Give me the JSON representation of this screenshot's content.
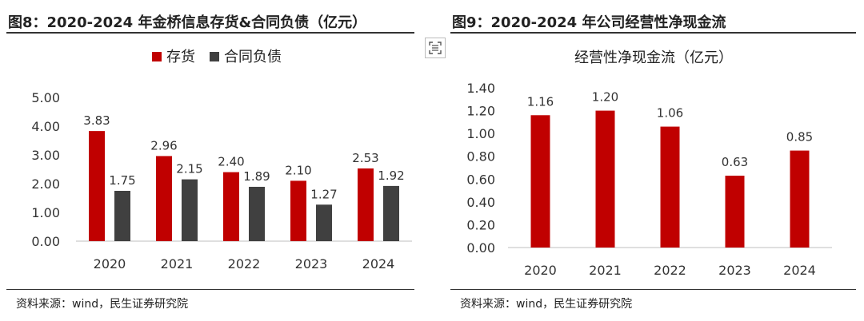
{
  "left_panel": {
    "figure_title": "图8：2020-2024 年金桥信息存货&合同负债（亿元）",
    "source": "资料来源：wind，民生证券研究院"
  },
  "right_panel": {
    "figure_title": "图9：2020-2024 年公司经营性净现金流",
    "source": "资料来源：wind，民生证券研究院"
  },
  "colors": {
    "red": "#C00000",
    "gray": "#404040"
  },
  "icons": {
    "scan": "scan-icon"
  },
  "chart_data": [
    {
      "type": "bar",
      "title": "",
      "categories": [
        "2020",
        "2021",
        "2022",
        "2023",
        "2024"
      ],
      "series": [
        {
          "name": "存货",
          "values": [
            3.83,
            2.96,
            2.4,
            2.1,
            2.53
          ],
          "color": "#C00000"
        },
        {
          "name": "合同负债",
          "values": [
            1.75,
            2.15,
            1.89,
            1.27,
            1.92
          ],
          "color": "#404040"
        }
      ],
      "ylim": [
        0,
        5
      ],
      "yticks": [
        "0.00",
        "1.00",
        "2.00",
        "3.00",
        "4.00",
        "5.00"
      ],
      "legend": "top",
      "grid": false
    },
    {
      "type": "bar",
      "title": "经营性净现金流（亿元）",
      "categories": [
        "2020",
        "2021",
        "2022",
        "2023",
        "2024"
      ],
      "series": [
        {
          "values": [
            1.16,
            1.2,
            1.06,
            0.63,
            0.85
          ],
          "color": "#C00000"
        }
      ],
      "ylim": [
        0,
        1.4
      ],
      "yticks": [
        "0.00",
        "0.20",
        "0.40",
        "0.60",
        "0.80",
        "1.00",
        "1.20",
        "1.40"
      ],
      "legend": "none",
      "grid": false
    }
  ]
}
